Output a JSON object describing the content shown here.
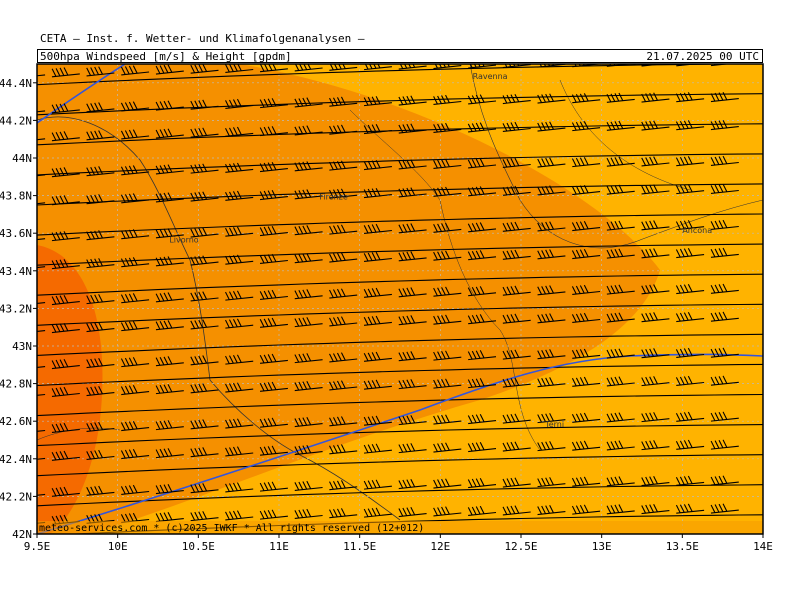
{
  "header": {
    "institute": "CETA — Inst. f. Wetter- und Klimafolgenanalysen —",
    "product": "500hpa_Windspeed_[m/s]_&_Height_[gpdm]",
    "valid_time": "21.07.2025 00 UTC"
  },
  "footer": {
    "credit": "meteo-services.com * (c)2025 IWKF * All rights reserved (12+012)"
  },
  "map": {
    "lon_range": [
      9.5,
      14.0
    ],
    "lat_range": [
      42.0,
      44.5
    ],
    "x_ticks": [
      "9.5E",
      "10E",
      "10.5E",
      "11E",
      "11.5E",
      "12E",
      "12.5E",
      "13E",
      "13.5E",
      "14E"
    ],
    "y_ticks": [
      "42N",
      "42.2N",
      "42.4N",
      "42.6N",
      "42.8N",
      "43N",
      "43.2N",
      "43.4N",
      "43.6N",
      "43.8N",
      "44N",
      "44.2N",
      "44.4N"
    ],
    "cities": [
      {
        "name": "Ravenna",
        "lon": 12.2,
        "lat": 44.42
      },
      {
        "name": "Firenze",
        "lon": 11.25,
        "lat": 43.78
      },
      {
        "name": "Livorno",
        "lon": 10.32,
        "lat": 43.55
      },
      {
        "name": "Ancona",
        "lon": 13.5,
        "lat": 43.6
      },
      {
        "name": "Terni",
        "lon": 12.65,
        "lat": 42.57
      }
    ],
    "colors": {
      "light_orange": "#ffb300",
      "medium_orange": "#f59000",
      "dark_orange": "#f56a00",
      "contour": "#000000",
      "jet_line": "#3355dd",
      "grid": "#bbbbbb"
    },
    "wind_barb_rows_lat": [
      44.43,
      44.26,
      44.09,
      43.92,
      43.75,
      43.58,
      43.41,
      43.24,
      43.07,
      42.9,
      42.73,
      42.56,
      42.39,
      42.22,
      42.05
    ]
  }
}
